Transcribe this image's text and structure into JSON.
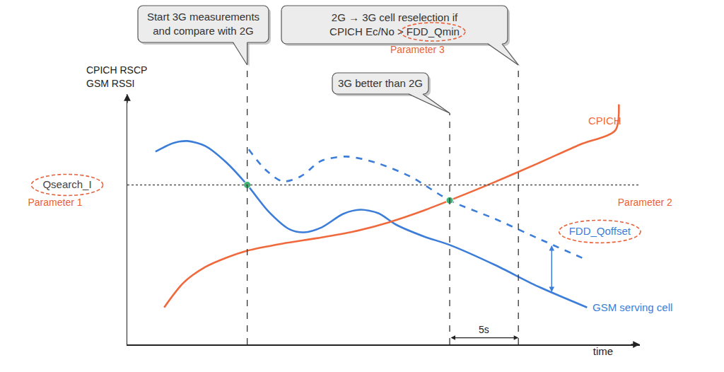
{
  "chart_data": {
    "type": "line",
    "ylabel": [
      "CPICH RSCP",
      "GSM RSSI"
    ],
    "xlabel": "time",
    "xlim": [
      0,
      100
    ],
    "ylim": [
      -3,
      110
    ],
    "tick_labels": false,
    "grid": false,
    "series": [
      {
        "name": "GSM serving cell",
        "color": "#3b7dd8",
        "line_style": "solid",
        "x": [
          5.5,
          9.0,
          11.7,
          15.2,
          19.3,
          23.4,
          27.6,
          31.7,
          34.5,
          37.9,
          42.1,
          45.5,
          49.0,
          52.4,
          57.9,
          62.9,
          71.7,
          80.0,
          89.7
        ],
        "values": [
          84.0,
          87.9,
          88.8,
          86.6,
          79.2,
          69.0,
          56.9,
          48.9,
          47.6,
          49.8,
          55.9,
          57.8,
          56.2,
          51.1,
          45.7,
          41.9,
          32.9,
          23.3,
          13.7
        ]
      },
      {
        "color": "#3b7dd8",
        "line_style": "dashed",
        "x": [
          23.7,
          26.9,
          30.3,
          33.8,
          37.9,
          42.8,
          48.3,
          55.2,
          62.9,
          71.7,
          80.0,
          89.7
        ],
        "values": [
          85.0,
          76.0,
          70.6,
          72.8,
          79.9,
          81.8,
          79.2,
          72.8,
          62.0,
          53.7,
          45.0,
          35.1
        ]
      },
      {
        "name": "CPICH",
        "color": "#f0693c",
        "line_style": "solid",
        "x": [
          7.2,
          11.0,
          15.2,
          19.3,
          23.4,
          30.3,
          37.2,
          44.1,
          51.0,
          57.9,
          62.9,
          71.7,
          80.0,
          88.3,
          95.2,
          95.9
        ],
        "values": [
          13.7,
          24.9,
          31.9,
          36.1,
          39.3,
          42.5,
          45.0,
          47.9,
          52.1,
          57.5,
          62.0,
          70.3,
          78.6,
          87.2,
          93.6,
          105.4
        ]
      },
      {
        "color": "#3cb371",
        "line_style": "none",
        "marker": "circle",
        "x": [
          23.4,
          62.9
        ],
        "values": [
          69,
          62
        ]
      }
    ],
    "hline": {
      "value": 69,
      "label": "Qsearch_I",
      "parameter": "Parameter 1"
    },
    "vlines": [
      {
        "x": 23.4,
        "callout": [
          "Start 3G measurements",
          "and compare with 2G"
        ]
      },
      {
        "x": 62.9,
        "callout": [
          "3G better than 2G"
        ]
      },
      {
        "x": 76.3,
        "callout": [
          "2G → 3G cell reselection if",
          "CPICH Ec/No > FDD_Qmin"
        ],
        "highlight": "FDD_Qmin",
        "parameter": "Parameter 3"
      }
    ],
    "offset": {
      "label": "FDD_Qoffset",
      "parameter": "Parameter 2",
      "x": 82.8,
      "y": [
        20.6,
        42.2
      ]
    },
    "interval": {
      "x": [
        62.9,
        76.3
      ],
      "y": 0,
      "label": "5s"
    }
  }
}
